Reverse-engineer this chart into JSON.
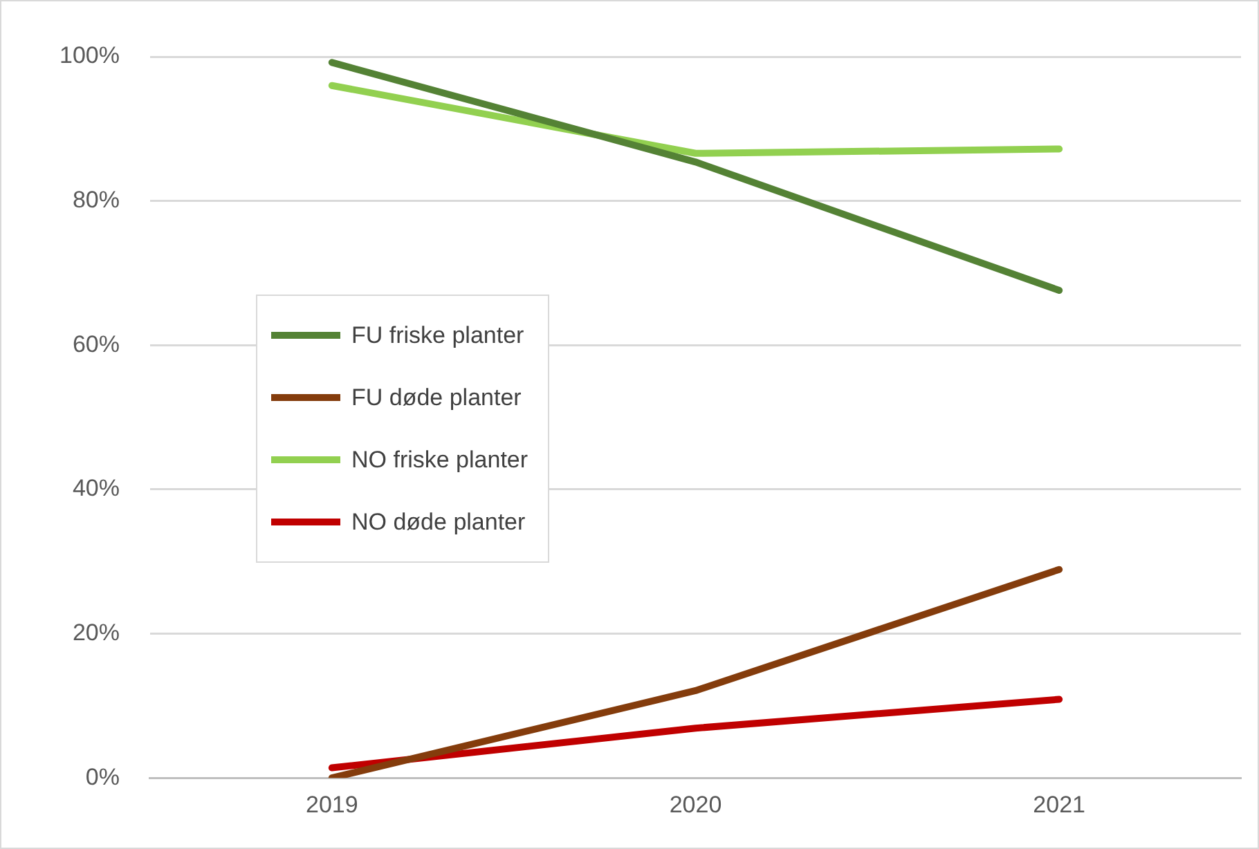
{
  "chart_data": {
    "type": "line",
    "categories": [
      "2019",
      "2020",
      "2021"
    ],
    "series": [
      {
        "name": "FU friske planter",
        "color": "#548235",
        "values": [
          99.2,
          85.4,
          67.6
        ]
      },
      {
        "name": "FU døde planter",
        "color": "#843c0c",
        "values": [
          0,
          12.1,
          28.9
        ]
      },
      {
        "name": "NO friske planter",
        "color": "#92d050",
        "values": [
          96,
          86.6,
          87.2
        ]
      },
      {
        "name": "NO døde planter",
        "color": "#c00000",
        "values": [
          1.4,
          6.9,
          10.9
        ]
      }
    ],
    "ylim": [
      0,
      100
    ],
    "yticks": [
      {
        "value": 0,
        "label": "0%"
      },
      {
        "value": 20,
        "label": "20%"
      },
      {
        "value": 40,
        "label": "40%"
      },
      {
        "value": 60,
        "label": "60%"
      },
      {
        "value": 80,
        "label": "80%"
      },
      {
        "value": 100,
        "label": "100%"
      }
    ],
    "grid": "y",
    "legend": "left",
    "marker": "none",
    "line_style": "solid"
  }
}
